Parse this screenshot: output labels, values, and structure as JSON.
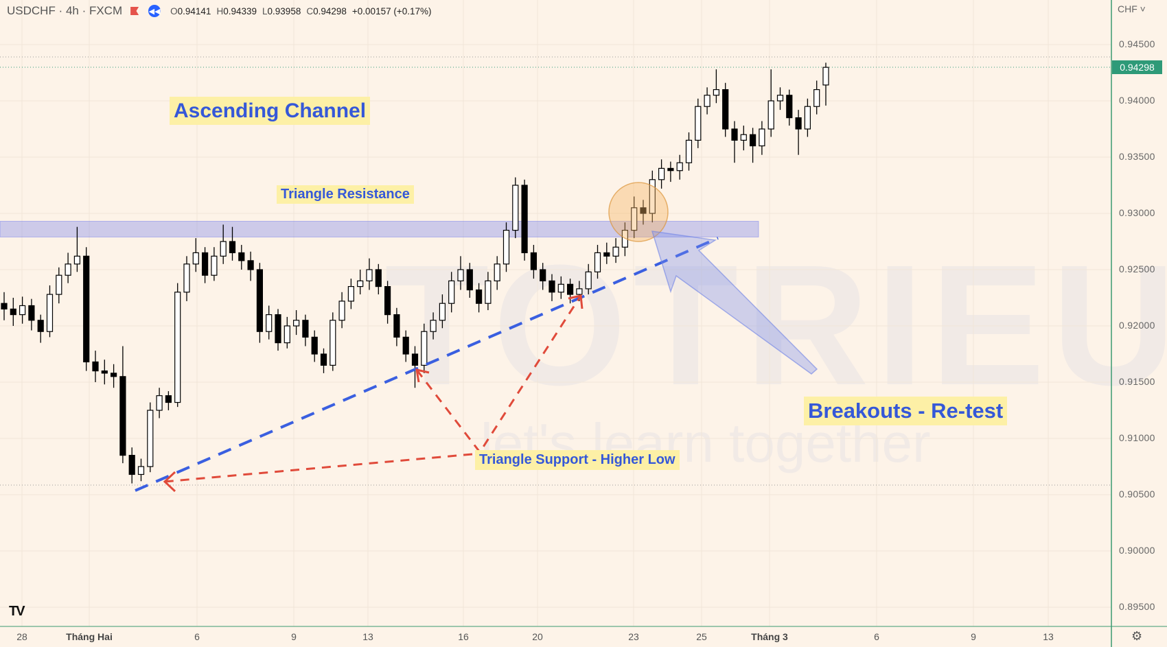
{
  "header": {
    "symbol": "USDCHF · 4h · FXCM",
    "open_label": "O",
    "open": "0.94141",
    "high_label": "H",
    "high": "0.94339",
    "low_label": "L",
    "low": "0.93958",
    "close_label": "C",
    "close": "0.94298",
    "change": "+0.00157 (+0.17%)",
    "replay_icon": "replay-rewind-icon",
    "flag_icon": "flag-icon"
  },
  "price_axis": {
    "currency": "CHF ˅",
    "labels": [
      "0.94500",
      "0.94000",
      "0.93500",
      "0.93000",
      "0.92500",
      "0.92000",
      "0.91500",
      "0.91000",
      "0.90500",
      "0.90000",
      "0.89500"
    ],
    "current_price": "0.94298",
    "current_price_color": "#2e9a78"
  },
  "time_axis": {
    "labels": [
      {
        "text": "28",
        "bold": false
      },
      {
        "text": "Tháng Hai",
        "bold": true
      },
      {
        "text": "6",
        "bold": false
      },
      {
        "text": "9",
        "bold": false
      },
      {
        "text": "13",
        "bold": false
      },
      {
        "text": "16",
        "bold": false
      },
      {
        "text": "20",
        "bold": false
      },
      {
        "text": "23",
        "bold": false
      },
      {
        "text": "25",
        "bold": false
      },
      {
        "text": "Tháng 3",
        "bold": true
      },
      {
        "text": "6",
        "bold": false
      },
      {
        "text": "9",
        "bold": false
      },
      {
        "text": "13",
        "bold": false
      }
    ],
    "settings_icon": "gear-icon"
  },
  "annotations": {
    "ascending_channel": "Ascending Channel",
    "triangle_resistance": "Triangle Resistance",
    "triangle_support": "Triangle Support - Higher Low",
    "breakouts": "Breakouts - Re-test",
    "text_color": "#3558d8",
    "highlight_color": "#fdf0a6",
    "resistance_zone": [
      0.9279,
      0.9293
    ],
    "channel_line_color": "#3a5fe0",
    "support_line_color": "#e04a3a"
  },
  "watermark": {
    "brand": "TOTRIEU",
    "slogan": "let's learn together"
  },
  "logo": "TV",
  "chart_data": {
    "type": "candlestick",
    "ylim": [
      0.8935,
      0.9465
    ],
    "up_color": "#ffffff",
    "down_color": "#000000",
    "candles": [
      [
        0.922,
        0.923,
        0.9205,
        0.9215
      ],
      [
        0.9215,
        0.9225,
        0.92,
        0.921
      ],
      [
        0.921,
        0.9226,
        0.9202,
        0.9218
      ],
      [
        0.9218,
        0.9224,
        0.9196,
        0.9205
      ],
      [
        0.9205,
        0.921,
        0.9185,
        0.9195
      ],
      [
        0.9195,
        0.9236,
        0.919,
        0.9228
      ],
      [
        0.9228,
        0.9252,
        0.922,
        0.9245
      ],
      [
        0.9245,
        0.9265,
        0.9238,
        0.9255
      ],
      [
        0.9255,
        0.9288,
        0.9248,
        0.9262
      ],
      [
        0.9262,
        0.927,
        0.916,
        0.9168
      ],
      [
        0.9168,
        0.9178,
        0.915,
        0.916
      ],
      [
        0.916,
        0.917,
        0.9148,
        0.9158
      ],
      [
        0.9158,
        0.9166,
        0.9145,
        0.9155
      ],
      [
        0.9155,
        0.9182,
        0.9078,
        0.9085
      ],
      [
        0.9085,
        0.9092,
        0.906,
        0.9068
      ],
      [
        0.9068,
        0.9082,
        0.9062,
        0.9075
      ],
      [
        0.9075,
        0.9132,
        0.907,
        0.9125
      ],
      [
        0.9125,
        0.9145,
        0.9118,
        0.9138
      ],
      [
        0.9138,
        0.9142,
        0.9125,
        0.9132
      ],
      [
        0.9132,
        0.9238,
        0.9128,
        0.923
      ],
      [
        0.923,
        0.9262,
        0.9222,
        0.9255
      ],
      [
        0.9255,
        0.9278,
        0.9248,
        0.9265
      ],
      [
        0.9265,
        0.927,
        0.9238,
        0.9245
      ],
      [
        0.9245,
        0.927,
        0.924,
        0.9262
      ],
      [
        0.9262,
        0.929,
        0.9255,
        0.9275
      ],
      [
        0.9275,
        0.9288,
        0.9258,
        0.9265
      ],
      [
        0.9265,
        0.9272,
        0.925,
        0.9258
      ],
      [
        0.9258,
        0.9266,
        0.924,
        0.925
      ],
      [
        0.925,
        0.9256,
        0.9185,
        0.9195
      ],
      [
        0.9195,
        0.9218,
        0.9188,
        0.921
      ],
      [
        0.921,
        0.9215,
        0.9178,
        0.9185
      ],
      [
        0.9185,
        0.9208,
        0.918,
        0.92
      ],
      [
        0.92,
        0.9214,
        0.9192,
        0.9205
      ],
      [
        0.9205,
        0.921,
        0.9182,
        0.919
      ],
      [
        0.919,
        0.9196,
        0.9168,
        0.9175
      ],
      [
        0.9175,
        0.918,
        0.9158,
        0.9165
      ],
      [
        0.9165,
        0.9212,
        0.916,
        0.9205
      ],
      [
        0.9205,
        0.923,
        0.9198,
        0.9222
      ],
      [
        0.9222,
        0.9242,
        0.9215,
        0.9235
      ],
      [
        0.9235,
        0.925,
        0.9228,
        0.924
      ],
      [
        0.924,
        0.926,
        0.9232,
        0.925
      ],
      [
        0.925,
        0.9255,
        0.9228,
        0.9235
      ],
      [
        0.9235,
        0.924,
        0.9202,
        0.921
      ],
      [
        0.921,
        0.9216,
        0.9182,
        0.919
      ],
      [
        0.919,
        0.9196,
        0.9168,
        0.9175
      ],
      [
        0.9175,
        0.9182,
        0.9145,
        0.9165
      ],
      [
        0.9165,
        0.9202,
        0.9158,
        0.9195
      ],
      [
        0.9195,
        0.9212,
        0.9188,
        0.9205
      ],
      [
        0.9205,
        0.9228,
        0.9198,
        0.922
      ],
      [
        0.922,
        0.9248,
        0.9212,
        0.924
      ],
      [
        0.924,
        0.9262,
        0.9232,
        0.925
      ],
      [
        0.925,
        0.9256,
        0.9225,
        0.9232
      ],
      [
        0.9232,
        0.9238,
        0.9212,
        0.922
      ],
      [
        0.922,
        0.9248,
        0.9214,
        0.924
      ],
      [
        0.924,
        0.9262,
        0.9232,
        0.9255
      ],
      [
        0.9255,
        0.9292,
        0.9248,
        0.9285
      ],
      [
        0.9285,
        0.9332,
        0.9278,
        0.9325
      ],
      [
        0.9325,
        0.933,
        0.9258,
        0.9265
      ],
      [
        0.9265,
        0.9272,
        0.9242,
        0.925
      ],
      [
        0.925,
        0.9256,
        0.9232,
        0.924
      ],
      [
        0.924,
        0.9246,
        0.9222,
        0.923
      ],
      [
        0.923,
        0.9244,
        0.9224,
        0.9237
      ],
      [
        0.9237,
        0.9242,
        0.922,
        0.9228
      ],
      [
        0.9228,
        0.924,
        0.9222,
        0.9233
      ],
      [
        0.9233,
        0.9255,
        0.9228,
        0.9248
      ],
      [
        0.9248,
        0.9272,
        0.9242,
        0.9265
      ],
      [
        0.9265,
        0.9274,
        0.9255,
        0.9262
      ],
      [
        0.9262,
        0.9278,
        0.9256,
        0.927
      ],
      [
        0.927,
        0.9292,
        0.9262,
        0.9285
      ],
      [
        0.9285,
        0.9315,
        0.9278,
        0.9305
      ],
      [
        0.9305,
        0.9312,
        0.929,
        0.93
      ],
      [
        0.93,
        0.9338,
        0.9292,
        0.933
      ],
      [
        0.933,
        0.9348,
        0.9322,
        0.934
      ],
      [
        0.934,
        0.9346,
        0.9328,
        0.9338
      ],
      [
        0.9338,
        0.9352,
        0.933,
        0.9345
      ],
      [
        0.9345,
        0.9372,
        0.9338,
        0.9365
      ],
      [
        0.9365,
        0.9402,
        0.9358,
        0.9395
      ],
      [
        0.9395,
        0.9412,
        0.9388,
        0.9405
      ],
      [
        0.9405,
        0.9428,
        0.9398,
        0.941
      ],
      [
        0.941,
        0.9416,
        0.9368,
        0.9375
      ],
      [
        0.9375,
        0.9382,
        0.9345,
        0.9365
      ],
      [
        0.9365,
        0.9378,
        0.9356,
        0.937
      ],
      [
        0.937,
        0.9376,
        0.9345,
        0.936
      ],
      [
        0.936,
        0.9382,
        0.9352,
        0.9375
      ],
      [
        0.9375,
        0.9428,
        0.9368,
        0.94
      ],
      [
        0.94,
        0.9412,
        0.9392,
        0.9405
      ],
      [
        0.9405,
        0.941,
        0.9378,
        0.9385
      ],
      [
        0.9385,
        0.9392,
        0.9352,
        0.9375
      ],
      [
        0.9375,
        0.9402,
        0.9368,
        0.9395
      ],
      [
        0.9395,
        0.9418,
        0.9388,
        0.941
      ],
      [
        0.94141,
        0.94339,
        0.93958,
        0.94298
      ]
    ]
  }
}
